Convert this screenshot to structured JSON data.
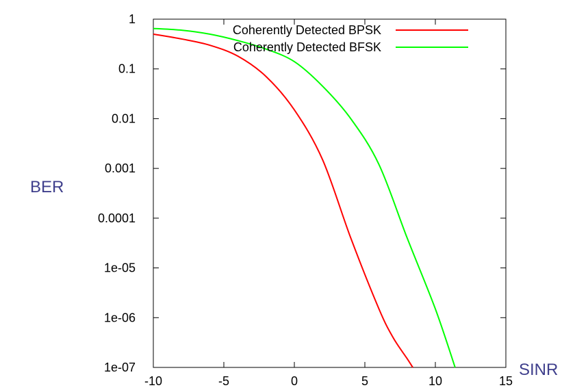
{
  "chart_data": {
    "type": "line",
    "title": "",
    "xlabel": "SINR",
    "ylabel": "BER",
    "xlim": [
      -10,
      15
    ],
    "ylim": [
      1e-07,
      1
    ],
    "yscale": "log",
    "grid": false,
    "legend_position": "top-right",
    "x_ticks": [
      -10,
      -5,
      0,
      5,
      10,
      15
    ],
    "x_tick_labels": [
      "-10",
      "-5",
      "0",
      "5",
      "10",
      "15"
    ],
    "y_ticks": [
      1,
      0.1,
      0.01,
      0.001,
      0.0001,
      1e-05,
      1e-06,
      1e-07
    ],
    "y_tick_labels": [
      "1",
      "0.1",
      "0.01",
      "0.001",
      "0.0001",
      "1e-05",
      "1e-06",
      "1e-07"
    ],
    "axis_label_color": "#3f3f8c",
    "series": [
      {
        "name": "Coherently Detected BPSK",
        "color": "#ff0000",
        "x": [
          -10,
          -8,
          -6,
          -4,
          -2,
          0,
          2,
          4,
          6,
          7,
          8,
          8.4
        ],
        "y": [
          0.5,
          0.4,
          0.3,
          0.18,
          0.07,
          0.015,
          0.0015,
          4e-05,
          1.5e-06,
          4e-07,
          1.5e-07,
          1e-07
        ]
      },
      {
        "name": "Coherently Detected BFSK",
        "color": "#00ff00",
        "x": [
          -10,
          -8,
          -6,
          -4,
          -2,
          0,
          2,
          4,
          6,
          8,
          10,
          11.4
        ],
        "y": [
          0.65,
          0.6,
          0.5,
          0.37,
          0.25,
          0.14,
          0.045,
          0.01,
          0.0012,
          4e-05,
          1.5e-06,
          1e-07
        ]
      }
    ]
  }
}
